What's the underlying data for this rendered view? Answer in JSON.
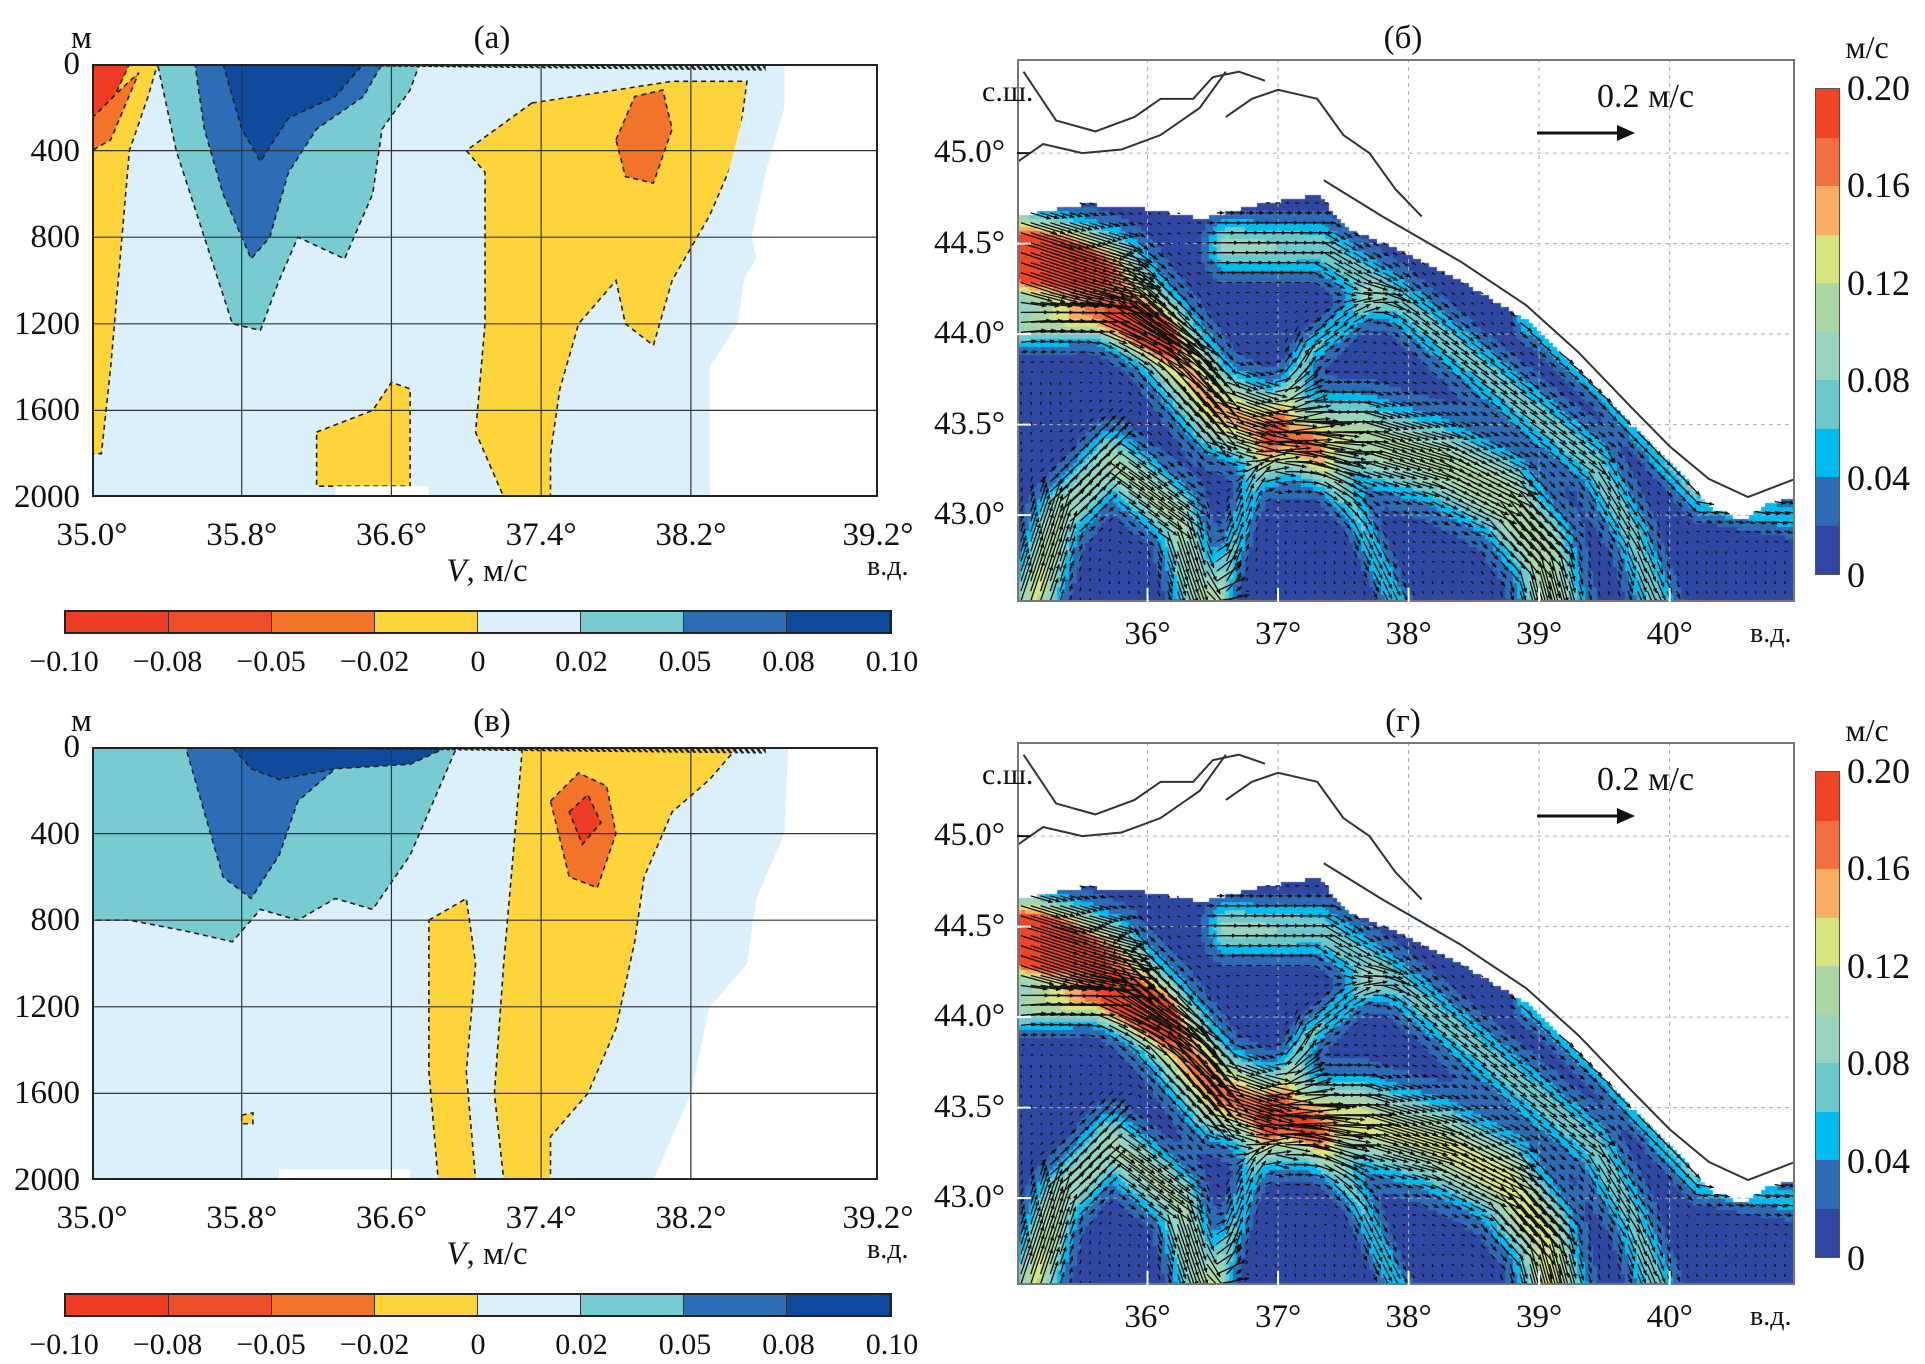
{
  "chart_data": [
    {
      "type": "heatmap",
      "panel_label": "(а)",
      "xlabel": "V, м/с",
      "x_unit_label": "в.д.",
      "y_unit_label": "м",
      "xlim": [
        35.0,
        39.2
      ],
      "ylim": [
        2000,
        0
      ],
      "x_ticks": [
        "35.0°",
        "35.8°",
        "36.6°",
        "37.4°",
        "38.2°",
        "39.2°"
      ],
      "y_ticks": [
        "0",
        "400",
        "800",
        "1200",
        "1600",
        "2000"
      ],
      "grid": true,
      "colorbar": {
        "levels": [
          "−0.10",
          "−0.08",
          "−0.05",
          "−0.02",
          "0",
          "0.02",
          "0.05",
          "0.08",
          "0.10"
        ],
        "colors": [
          "#ee3b24",
          "#ef4d2a",
          "#f37328",
          "#fdd43a",
          "#dbf0fb",
          "#77cbd1",
          "#2c6db6",
          "#0f4a9c"
        ]
      }
    },
    {
      "type": "heatmap",
      "panel_label": "(б)",
      "x_unit_label": "в.д.",
      "y_unit_label": "с.ш.",
      "xlim": [
        35.0,
        41.0
      ],
      "ylim": [
        42.5,
        45.5
      ],
      "x_ticks": [
        "36°",
        "37°",
        "38°",
        "39°",
        "40°"
      ],
      "y_ticks": [
        "45.0°",
        "44.5°",
        "44.0°",
        "43.5°",
        "43.0°"
      ],
      "grid": true,
      "reference_vector": "0.2 м/с",
      "colorbar": {
        "unit": "м/с",
        "tick_labels": [
          "0",
          "0.04",
          "0.08",
          "0.12",
          "0.16",
          "0.20"
        ],
        "colors": [
          "#2f47a0",
          "#2e6bb5",
          "#00bcee",
          "#6bc9cd",
          "#98d3c0",
          "#acd6a4",
          "#d8e47e",
          "#f8ad62",
          "#f26f40",
          "#ee4526"
        ]
      }
    },
    {
      "type": "heatmap",
      "panel_label": "(в)",
      "xlabel": "V, м/с",
      "x_unit_label": "в.д.",
      "y_unit_label": "м",
      "xlim": [
        35.0,
        39.2
      ],
      "ylim": [
        2000,
        0
      ],
      "x_ticks": [
        "35.0°",
        "35.8°",
        "36.6°",
        "37.4°",
        "38.2°",
        "39.2°"
      ],
      "y_ticks": [
        "0",
        "400",
        "800",
        "1200",
        "1600",
        "2000"
      ],
      "grid": true,
      "colorbar": {
        "levels": [
          "−0.10",
          "−0.08",
          "−0.05",
          "−0.02",
          "0",
          "0.02",
          "0.05",
          "0.08",
          "0.10"
        ],
        "colors": [
          "#ee3b24",
          "#ef4d2a",
          "#f37328",
          "#fdd43a",
          "#dbf0fb",
          "#77cbd1",
          "#2c6db6",
          "#0f4a9c"
        ]
      }
    },
    {
      "type": "heatmap",
      "panel_label": "(г)",
      "x_unit_label": "в.д.",
      "y_unit_label": "с.ш.",
      "xlim": [
        35.0,
        41.0
      ],
      "ylim": [
        42.5,
        45.5
      ],
      "x_ticks": [
        "36°",
        "37°",
        "38°",
        "39°",
        "40°"
      ],
      "y_ticks": [
        "45.0°",
        "44.5°",
        "44.0°",
        "43.5°",
        "43.0°"
      ],
      "grid": true,
      "reference_vector": "0.2 м/с",
      "colorbar": {
        "unit": "м/с",
        "tick_labels": [
          "0",
          "0.04",
          "0.08",
          "0.12",
          "0.16",
          "0.20"
        ],
        "colors": [
          "#2f47a0",
          "#2e6bb5",
          "#00bcee",
          "#6bc9cd",
          "#98d3c0",
          "#acd6a4",
          "#d8e47e",
          "#f8ad62",
          "#f26f40",
          "#ee4526"
        ]
      }
    }
  ]
}
